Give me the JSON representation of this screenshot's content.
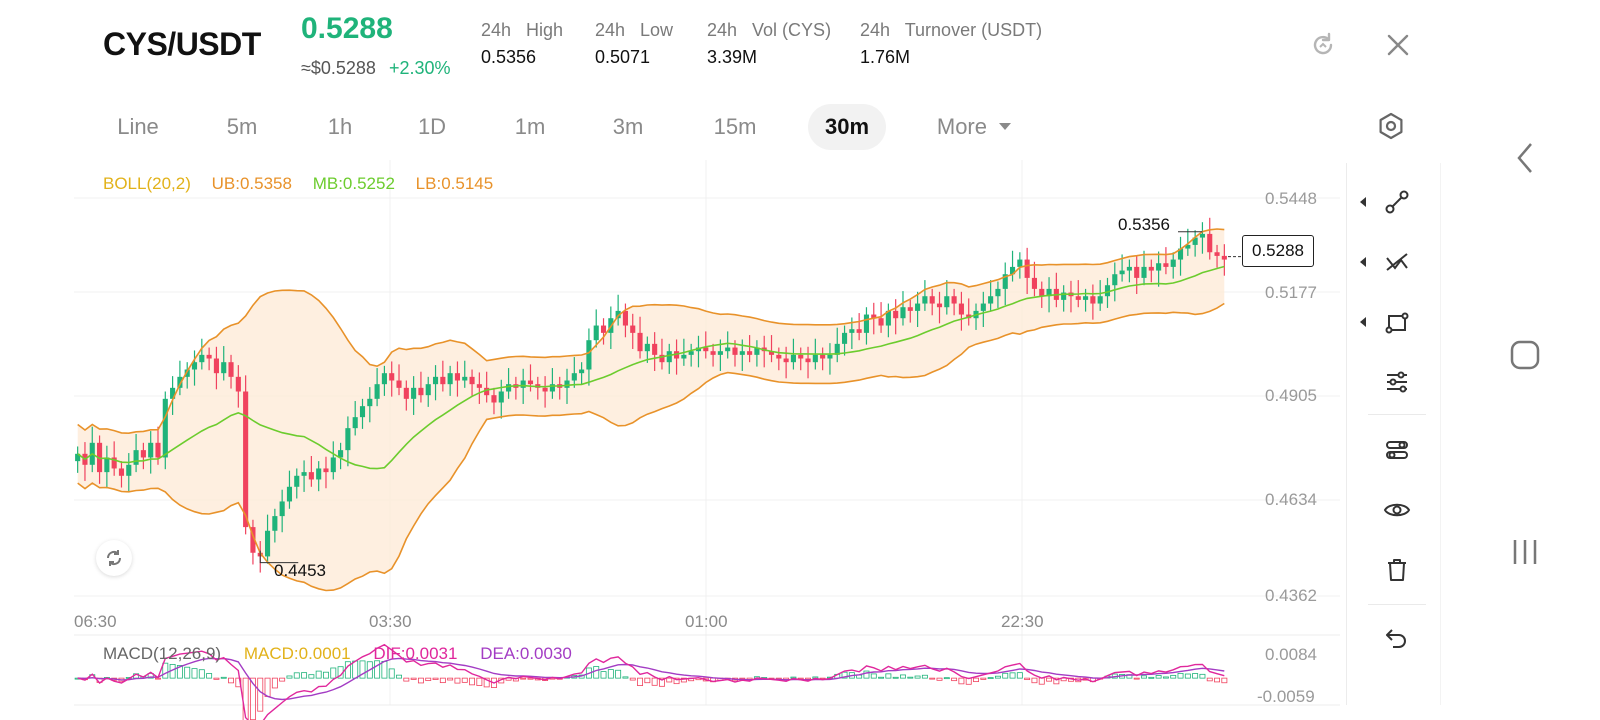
{
  "header": {
    "pair": "CYS/USDT",
    "last_price": "0.5288",
    "approx_usd": "≈$0.5288",
    "change": "+2.30%",
    "stats": [
      {
        "label": "24h   High",
        "value": "0.5356"
      },
      {
        "label": "24h   Low",
        "value": "0.5071"
      },
      {
        "label": "24h   Vol (CYS)",
        "value": "3.39M"
      },
      {
        "label": "24h   Turnover (USDT)",
        "value": "1.76M"
      }
    ]
  },
  "tabs": [
    {
      "label": "Line",
      "active": false
    },
    {
      "label": "5m",
      "active": false
    },
    {
      "label": "1h",
      "active": false
    },
    {
      "label": "1D",
      "active": false
    },
    {
      "label": "1m",
      "active": false
    },
    {
      "label": "3m",
      "active": false
    },
    {
      "label": "15m",
      "active": false
    },
    {
      "label": "30m",
      "active": true
    },
    {
      "label": "More",
      "active": false
    }
  ],
  "boll": {
    "name": "BOLL(20,2)",
    "ub": "UB:0.5358",
    "mb": "MB:0.5252",
    "lb": "LB:0.5145"
  },
  "macd": {
    "name": "MACD(12,26,9)",
    "macd": "MACD:0.0001",
    "dif": "DIF:0.0031",
    "dea": "DEA:0.0030",
    "axis_top": "0.0084",
    "axis_bottom": "-0.0059"
  },
  "price_axis": [
    "0.5448",
    "0.5177",
    "0.4905",
    "0.4634",
    "0.4362"
  ],
  "time_axis": [
    "06:30",
    "03:30",
    "01:00",
    "22:30"
  ],
  "markers": {
    "high": "0.5356",
    "low": "0.4453",
    "current": "0.5288"
  },
  "colors": {
    "up": "#1fb37a",
    "down": "#f0425e",
    "boll_band": "#e8922a",
    "boll_mid": "#6ccc2e",
    "boll_fill": "#fde9d6",
    "dif": "#e0279c",
    "dea": "#a33cc4"
  },
  "icons": {
    "refresh": "refresh-icon",
    "close": "close-icon",
    "settings": "hexagon-settings-icon",
    "tools": [
      "trendline-icon",
      "crossline-icon",
      "shape-icon",
      "adjust-icon",
      "indicator-icon",
      "eye-icon",
      "trash-icon",
      "undo-icon"
    ],
    "nav": [
      "back-icon",
      "home-icon",
      "recents-icon"
    ]
  },
  "chart_data": {
    "type": "candlestick",
    "interval": "30m",
    "price_range": [
      0.4362,
      0.5448
    ],
    "annotated_high": 0.5356,
    "annotated_low": 0.4453,
    "current_price": 0.5288,
    "boll": {
      "ub": 0.5358,
      "mb": 0.5252,
      "lb": 0.5145
    },
    "macd": {
      "macd": 0.0001,
      "dif": 0.0031,
      "dea": 0.003,
      "range": [
        -0.0059,
        0.0084
      ]
    },
    "time_ticks": [
      "06:30",
      "03:30",
      "01:00",
      "22:30"
    ],
    "close_series": [
      0.475,
      0.472,
      0.478,
      0.47,
      0.474,
      0.471,
      0.469,
      0.472,
      0.476,
      0.474,
      0.478,
      0.474,
      0.49,
      0.493,
      0.496,
      0.498,
      0.5,
      0.502,
      0.501,
      0.497,
      0.5,
      0.496,
      0.492,
      0.455,
      0.448,
      0.447,
      0.454,
      0.458,
      0.462,
      0.466,
      0.469,
      0.47,
      0.468,
      0.471,
      0.47,
      0.474,
      0.476,
      0.482,
      0.485,
      0.488,
      0.49,
      0.494,
      0.497,
      0.495,
      0.493,
      0.49,
      0.493,
      0.491,
      0.494,
      0.496,
      0.494,
      0.497,
      0.495,
      0.496,
      0.494,
      0.493,
      0.491,
      0.489,
      0.492,
      0.494,
      0.493,
      0.495,
      0.494,
      0.493,
      0.492,
      0.494,
      0.493,
      0.495,
      0.497,
      0.498,
      0.506,
      0.51,
      0.508,
      0.512,
      0.514,
      0.51,
      0.508,
      0.503,
      0.505,
      0.502,
      0.5,
      0.503,
      0.501,
      0.502,
      0.503,
      0.504,
      0.503,
      0.502,
      0.503,
      0.504,
      0.502,
      0.503,
      0.502,
      0.504,
      0.503,
      0.502,
      0.501,
      0.5,
      0.502,
      0.501,
      0.5,
      0.502,
      0.501,
      0.502,
      0.505,
      0.508,
      0.509,
      0.508,
      0.513,
      0.512,
      0.51,
      0.514,
      0.512,
      0.515,
      0.514,
      0.516,
      0.518,
      0.516,
      0.515,
      0.518,
      0.516,
      0.513,
      0.512,
      0.514,
      0.516,
      0.518,
      0.52,
      0.524,
      0.526,
      0.528,
      0.523,
      0.52,
      0.518,
      0.52,
      0.517,
      0.519,
      0.518,
      0.517,
      0.518,
      0.516,
      0.518,
      0.521,
      0.524,
      0.525,
      0.526,
      0.523,
      0.526,
      0.525,
      0.527,
      0.526,
      0.528,
      0.531,
      0.532,
      0.534,
      0.535,
      0.53,
      0.529,
      0.528
    ]
  }
}
